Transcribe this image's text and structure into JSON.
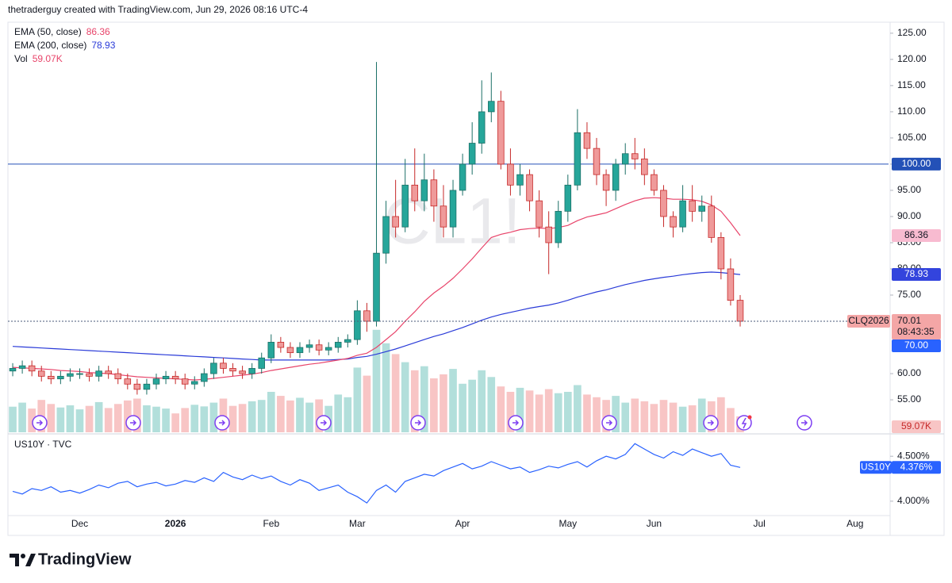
{
  "header": "thetraderguy created with TradingView.com, Jun 29, 2026 08:16 UTC-4",
  "footer": {
    "logo": "TradingView"
  },
  "chart_data": {
    "type": "candlestick",
    "watermark": "CL1!",
    "contract": "CLQ2026",
    "countdown": "08:43:35",
    "alert_label": "70.00",
    "up_color": "#26a69a",
    "down_color": "#ef9a9a",
    "down_border": "#c62828",
    "ylim": [
      48.8,
      127.1
    ],
    "yticks": [
      {
        "value": 55,
        "label": "55.00"
      },
      {
        "value": 60,
        "label": "60.00"
      },
      {
        "value": 75,
        "label": "75.00"
      },
      {
        "value": 80,
        "label": "80.00"
      },
      {
        "value": 85,
        "label": "85.00"
      },
      {
        "value": 90,
        "label": "90.00"
      },
      {
        "value": 95,
        "label": "95.00"
      },
      {
        "value": 100,
        "label": "100.00"
      },
      {
        "value": 105,
        "label": "105.00"
      },
      {
        "value": 110,
        "label": "110.00"
      },
      {
        "value": 115,
        "label": "115.00"
      },
      {
        "value": 120,
        "label": "120.00"
      },
      {
        "value": 125,
        "label": "125.00"
      }
    ],
    "grid": false,
    "hline": {
      "value": 100,
      "label": "100.00",
      "color": "#2451b7"
    },
    "categories": [
      null,
      null,
      null,
      null,
      null,
      null,
      null,
      "Dec",
      null,
      null,
      null,
      null,
      null,
      null,
      null,
      null,
      null,
      "2026",
      null,
      null,
      null,
      null,
      null,
      null,
      null,
      null,
      null,
      "Feb",
      null,
      null,
      null,
      null,
      null,
      null,
      null,
      null,
      "Mar",
      null,
      null,
      null,
      null,
      null,
      null,
      null,
      null,
      null,
      null,
      "Apr",
      null,
      null,
      null,
      null,
      null,
      null,
      null,
      null,
      null,
      null,
      "May",
      null,
      null,
      null,
      null,
      null,
      null,
      null,
      null,
      "Jun",
      null,
      null,
      null,
      null,
      null,
      null,
      null,
      null,
      null,
      null,
      "Jul",
      null,
      null,
      null,
      null,
      null,
      null,
      null,
      null,
      null,
      "Aug",
      null,
      null,
      null
    ],
    "open": [
      60.5,
      61,
      61.5,
      60.5,
      59.5,
      59,
      59.5,
      60,
      60,
      59.5,
      60.5,
      60,
      59,
      58,
      57,
      58,
      59,
      59.5,
      59,
      58,
      58.5,
      60,
      62,
      61,
      60.5,
      60,
      61,
      63,
      66,
      65,
      64,
      65,
      65.5,
      64.5,
      65,
      66,
      66.5,
      72,
      70,
      83,
      90,
      88,
      96,
      93,
      97,
      92,
      88,
      95,
      100,
      104,
      110,
      112,
      100,
      96,
      98,
      93,
      88,
      85,
      91,
      96,
      106,
      103,
      98,
      95,
      100,
      102,
      101,
      98,
      95,
      90,
      88,
      93,
      91,
      92,
      86,
      80,
      74,
      null,
      null,
      null,
      null,
      null,
      null,
      null,
      null,
      null,
      null,
      null,
      null,
      null,
      null,
      null
    ],
    "high": [
      62,
      62.5,
      62.5,
      61.5,
      60.5,
      60.5,
      61,
      61,
      61,
      61.5,
      61.5,
      61,
      60,
      59,
      59,
      60,
      60.5,
      60.5,
      60,
      59.5,
      61,
      63,
      63,
      62,
      61.5,
      62,
      64,
      67.5,
      67,
      66,
      66,
      66.5,
      66.5,
      66,
      67,
      67.5,
      74,
      73.5,
      119.5,
      93,
      97,
      101,
      103,
      102,
      99,
      96,
      97,
      102,
      108,
      116,
      117.5,
      114,
      103,
      100,
      99,
      95,
      91,
      93,
      98,
      110.5,
      108,
      105,
      99,
      101,
      104,
      105,
      103,
      99,
      96,
      91,
      96,
      96,
      94,
      94,
      87,
      82,
      75,
      null,
      null,
      null,
      null,
      null,
      null,
      null,
      null,
      null,
      null,
      null,
      null,
      null,
      null,
      null
    ],
    "low": [
      59.5,
      60,
      59.5,
      58.5,
      58,
      58,
      58.5,
      59,
      58.5,
      58.5,
      59,
      58,
      57,
      56,
      56,
      57,
      58,
      58,
      57,
      57,
      57.5,
      59,
      60,
      59.5,
      59,
      59,
      60,
      62,
      64,
      63,
      63,
      64,
      63.5,
      63.5,
      64,
      65,
      65.5,
      68,
      69,
      81,
      86,
      87,
      91,
      91,
      89,
      86,
      86,
      94,
      98,
      102,
      108,
      99,
      94,
      94,
      91,
      86,
      79,
      84,
      89,
      95,
      101,
      96,
      92,
      93,
      98,
      99,
      96,
      94,
      88,
      86,
      87,
      89,
      89,
      85,
      78,
      73,
      69,
      null,
      null,
      null,
      null,
      null,
      null,
      null,
      null,
      null,
      null,
      null,
      null,
      null,
      null,
      null
    ],
    "close": [
      61,
      61.5,
      60.5,
      59.5,
      59,
      59.5,
      60,
      60,
      59.5,
      60.5,
      60,
      59,
      58,
      57,
      58,
      59,
      59.5,
      59,
      58,
      58.5,
      60,
      62,
      61,
      60.5,
      60,
      61,
      63,
      66,
      65,
      64,
      65,
      65.5,
      64.5,
      65,
      66,
      66.5,
      72,
      70,
      83,
      90,
      88,
      96,
      93,
      97,
      92,
      88,
      95,
      100,
      104,
      110,
      112,
      100,
      96,
      98,
      93,
      88,
      85,
      91,
      96,
      106,
      103,
      98,
      95,
      100,
      102,
      101,
      98,
      95,
      90,
      88,
      93,
      91,
      92,
      86,
      80,
      74,
      70.01,
      null,
      null,
      null,
      null,
      null,
      null,
      null,
      null,
      null,
      null,
      null,
      null,
      null,
      null,
      null
    ],
    "volume": {
      "name": "Vol",
      "last_label": "59.07K",
      "up_color": "#b2dfdb",
      "down_color": "#f8c5c5",
      "values": [
        95,
        110,
        88,
        120,
        105,
        92,
        100,
        85,
        98,
        112,
        90,
        105,
        118,
        125,
        100,
        95,
        88,
        70,
        90,
        102,
        96,
        110,
        125,
        98,
        105,
        115,
        120,
        150,
        135,
        118,
        128,
        110,
        122,
        98,
        140,
        130,
        240,
        210,
        380,
        330,
        290,
        260,
        230,
        245,
        200,
        215,
        235,
        180,
        195,
        230,
        205,
        170,
        150,
        165,
        155,
        140,
        160,
        145,
        150,
        175,
        140,
        130,
        120,
        135,
        110,
        125,
        115,
        105,
        120,
        110,
        95,
        100,
        125,
        115,
        130,
        90,
        59.07,
        null,
        null,
        null,
        null,
        null,
        null,
        null,
        null,
        null,
        null,
        null,
        null,
        null,
        null,
        null
      ]
    },
    "ema50": {
      "name": "EMA (50, close)",
      "color": "#e8446a",
      "badge_bg": "#f8bbd0",
      "values": [
        61.2,
        61.1,
        61.0,
        60.9,
        60.8,
        60.6,
        60.5,
        60.4,
        60.2,
        60.1,
        60.0,
        59.8,
        59.6,
        59.4,
        59.3,
        59.2,
        59.1,
        59.0,
        58.9,
        58.8,
        58.9,
        59.1,
        59.3,
        59.5,
        59.7,
        59.9,
        60.2,
        60.6,
        60.9,
        61.2,
        61.5,
        61.8,
        62.0,
        62.3,
        62.6,
        62.9,
        63.5,
        63.9,
        65.0,
        66.5,
        68.0,
        70.0,
        71.8,
        73.8,
        75.4,
        76.7,
        78.2,
        80.0,
        81.9,
        84.0,
        86.0,
        86.6,
        87.0,
        87.5,
        87.7,
        87.8,
        87.7,
        87.9,
        88.3,
        89.2,
        89.9,
        90.3,
        90.7,
        91.5,
        92.3,
        93.0,
        93.5,
        93.6,
        93.5,
        93.3,
        93.3,
        93.2,
        92.9,
        92.2,
        91.0,
        88.8,
        86.36,
        null,
        null,
        null,
        null,
        null,
        null,
        null,
        null,
        null,
        null,
        null,
        null,
        null,
        null,
        null
      ]
    },
    "ema200": {
      "name": "EMA (200, close)",
      "color": "#2a3bd8",
      "badge_bg": "#3344dd",
      "values": [
        65.2,
        65.1,
        65.0,
        64.9,
        64.8,
        64.7,
        64.6,
        64.5,
        64.4,
        64.3,
        64.2,
        64.1,
        64.0,
        63.9,
        63.8,
        63.7,
        63.6,
        63.5,
        63.4,
        63.3,
        63.2,
        63.1,
        63.0,
        62.9,
        62.8,
        62.7,
        62.6,
        62.6,
        62.6,
        62.6,
        62.6,
        62.6,
        62.6,
        62.6,
        62.7,
        62.8,
        63.1,
        63.3,
        63.7,
        64.2,
        64.7,
        65.3,
        65.9,
        66.5,
        67.1,
        67.6,
        68.2,
        68.8,
        69.5,
        70.2,
        70.8,
        71.3,
        71.7,
        72.1,
        72.5,
        72.8,
        73.1,
        73.5,
        74.0,
        74.6,
        75.1,
        75.6,
        76.0,
        76.5,
        77.0,
        77.4,
        77.8,
        78.1,
        78.4,
        78.6,
        78.9,
        79.1,
        79.3,
        79.4,
        79.3,
        79.1,
        78.93,
        null,
        null,
        null,
        null,
        null,
        null,
        null,
        null,
        null,
        null,
        null,
        null,
        null,
        null,
        null
      ]
    },
    "us10y": {
      "name": "US10Y · TVC",
      "symbol": "US10Y",
      "last_label": "4.376%",
      "color": "#2962ff",
      "ylim": [
        3.84,
        4.74
      ],
      "yticks": [
        {
          "value": 4.5,
          "label": "4.500%"
        },
        {
          "value": 4.0,
          "label": "4.000%"
        }
      ],
      "values": [
        4.11,
        4.08,
        4.14,
        4.12,
        4.16,
        4.1,
        4.12,
        4.09,
        4.13,
        4.18,
        4.15,
        4.2,
        4.22,
        4.16,
        4.19,
        4.21,
        4.17,
        4.19,
        4.23,
        4.21,
        4.26,
        4.22,
        4.32,
        4.27,
        4.24,
        4.29,
        4.25,
        4.28,
        4.22,
        4.18,
        4.24,
        4.2,
        4.12,
        4.15,
        4.18,
        4.1,
        4.05,
        3.98,
        4.12,
        4.18,
        4.1,
        4.22,
        4.26,
        4.3,
        4.28,
        4.34,
        4.38,
        4.42,
        4.36,
        4.39,
        4.44,
        4.4,
        4.36,
        4.38,
        4.32,
        4.35,
        4.39,
        4.37,
        4.41,
        4.44,
        4.38,
        4.45,
        4.5,
        4.47,
        4.52,
        4.64,
        4.58,
        4.52,
        4.48,
        4.55,
        4.51,
        4.58,
        4.54,
        4.5,
        4.53,
        4.4,
        4.376,
        null,
        null,
        null,
        null,
        null,
        null,
        null,
        null,
        null,
        null,
        null,
        null,
        null,
        null,
        null
      ]
    }
  }
}
